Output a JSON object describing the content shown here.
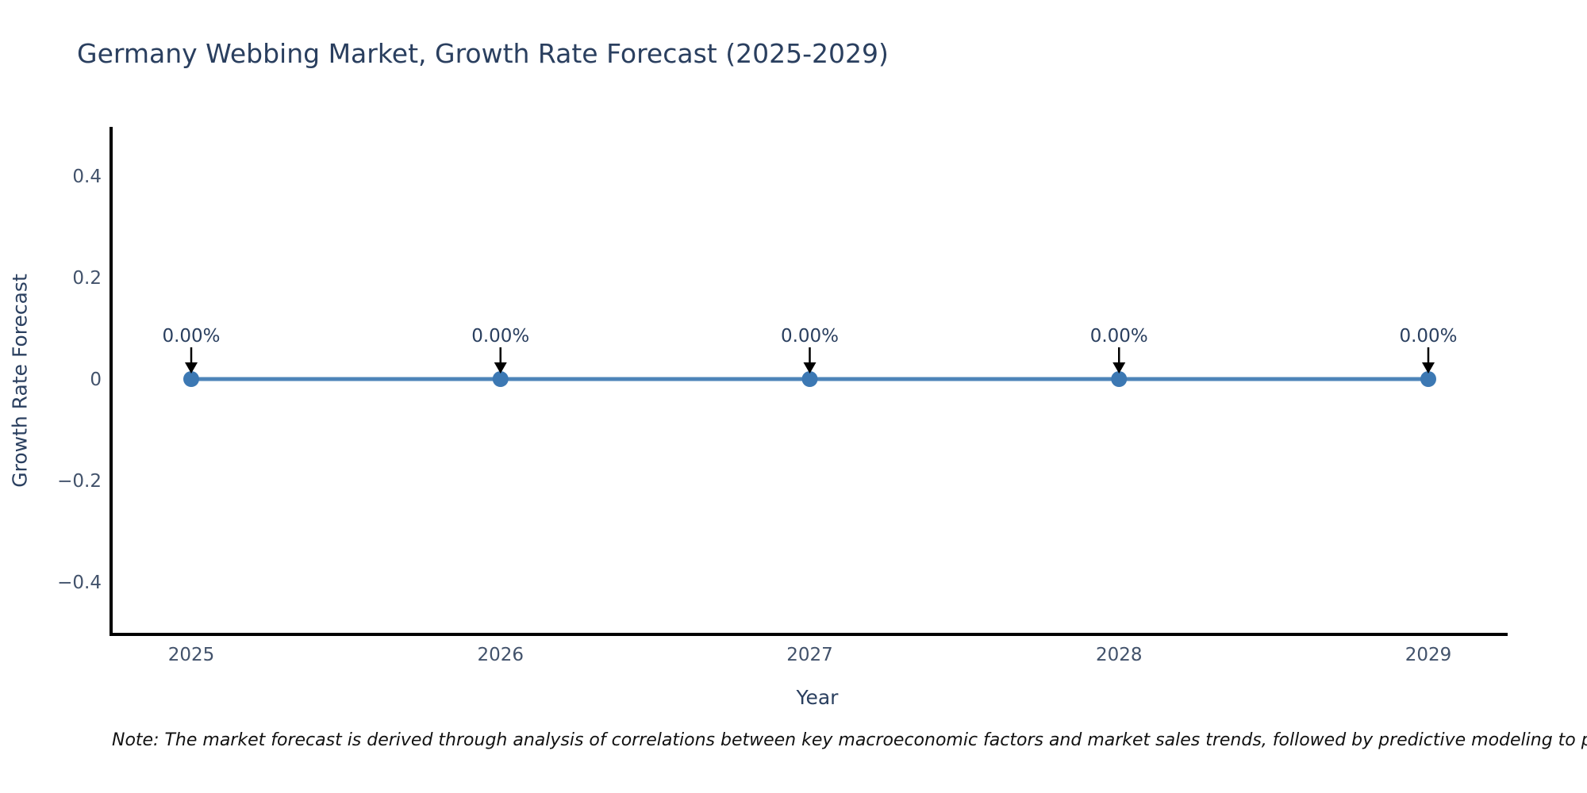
{
  "title": "Germany Webbing Market, Growth Rate Forecast (2025-2029)",
  "note": "Note: The market forecast is derived through analysis of correlations between key macroeconomic factors and market sales trends, followed by predictive modeling to project future sales.",
  "colors": {
    "background": "#ffffff",
    "title_text": "#2a3f5f",
    "tick_text": "#42526b",
    "axis_line": "#000000",
    "series_line": "#4d84b9",
    "marker_fill": "#3c78b3",
    "annotation_text": "#2a3f5f",
    "arrow": "#000000",
    "note_text": "#111111"
  },
  "chart_data": {
    "type": "line",
    "title": "Germany Webbing Market, Growth Rate Forecast (2025-2029)",
    "xlabel": "Year",
    "ylabel": "Growth Rate Forecast",
    "x": [
      2025,
      2026,
      2027,
      2028,
      2029
    ],
    "values": [
      0,
      0,
      0,
      0,
      0
    ],
    "point_labels": [
      "0.00%",
      "0.00%",
      "0.00%",
      "0.00%",
      "0.00%"
    ],
    "x_tick_labels": [
      "2025",
      "2026",
      "2027",
      "2028",
      "2029"
    ],
    "y_ticks": [
      0.4,
      0.2,
      0,
      -0.2,
      -0.4
    ],
    "y_tick_labels": [
      "0.4",
      "0.2",
      "0",
      "−0.2",
      "−0.4"
    ],
    "ylim": [
      -0.5,
      0.5
    ],
    "grid": false,
    "legend": "none",
    "marker": "circle",
    "annotation_arrows": "down"
  }
}
